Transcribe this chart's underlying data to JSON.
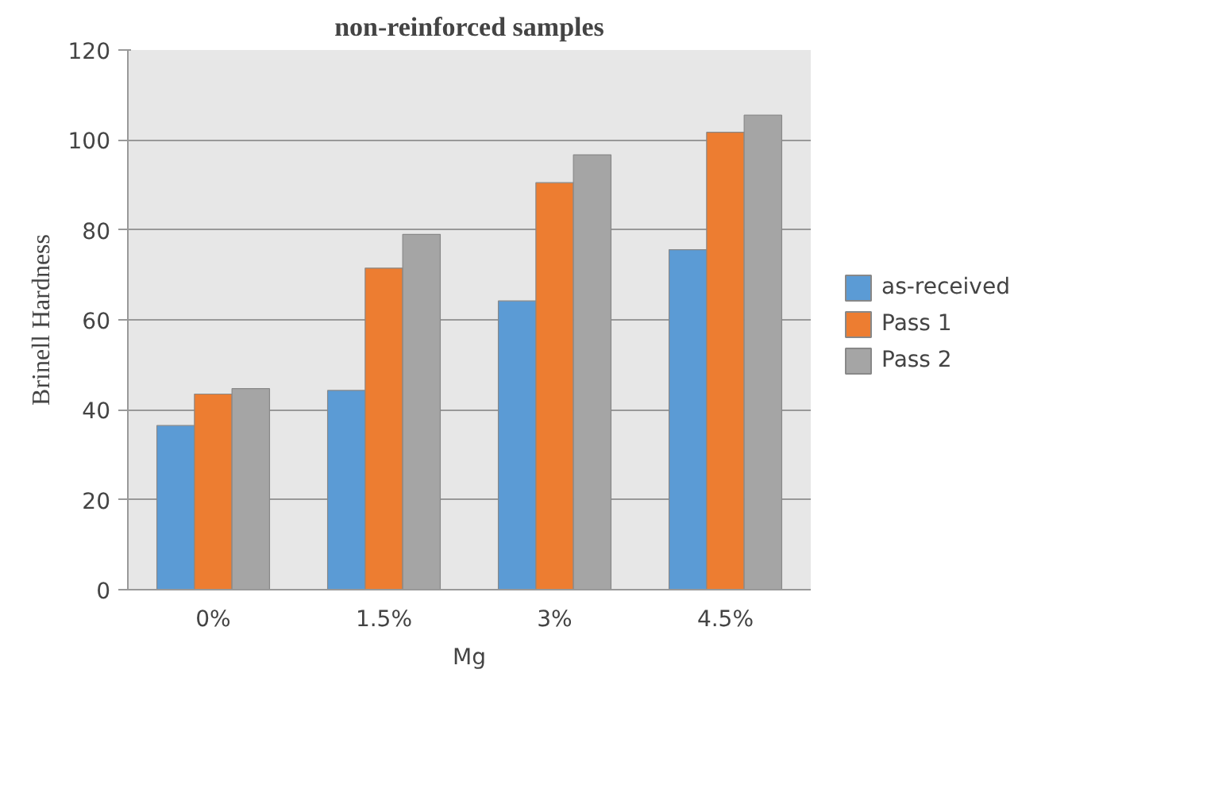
{
  "chart_data": {
    "type": "bar",
    "title": "non-reinforced samples",
    "xlabel": "Mg",
    "ylabel": "Brinell Hardness",
    "categories": [
      "0%",
      "1.5%",
      "3%",
      "4.5%"
    ],
    "series": [
      {
        "name": "as-received",
        "color": "#5b9bd5",
        "values": [
          36.5,
          44.3,
          64.2,
          75.6
        ]
      },
      {
        "name": "Pass 1",
        "color": "#ed7d31",
        "values": [
          43.5,
          71.5,
          90.5,
          101.7
        ]
      },
      {
        "name": "Pass 2",
        "color": "#a5a5a5",
        "values": [
          44.7,
          79.0,
          96.7,
          105.5
        ]
      }
    ],
    "ylim": [
      0,
      120
    ],
    "yticks": [
      0,
      20,
      40,
      60,
      80,
      100,
      120
    ],
    "grid": "y",
    "legend": "right"
  }
}
